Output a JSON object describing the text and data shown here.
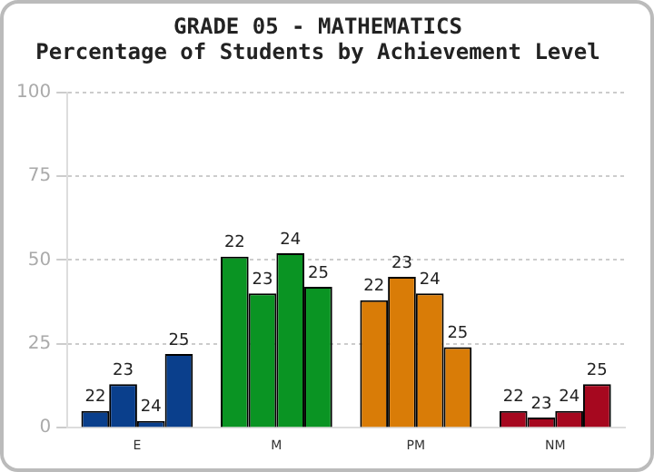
{
  "chart_data": {
    "type": "bar",
    "title": "GRADE 05 - MATHEMATICS",
    "subtitle": "Percentage of Students by Achievement Level",
    "categories": [
      "E",
      "M",
      "PM",
      "NM"
    ],
    "series": [
      {
        "name": "22",
        "colors": [
          "#0a3f8c",
          "#0a9423",
          "#d97c07",
          "#a6081f"
        ],
        "values": [
          5,
          51,
          38,
          5
        ]
      },
      {
        "name": "23",
        "colors": [
          "#0a3f8c",
          "#0a9423",
          "#d97c07",
          "#a6081f"
        ],
        "values": [
          13,
          40,
          45,
          3
        ]
      },
      {
        "name": "24",
        "colors": [
          "#0a3f8c",
          "#0a9423",
          "#d97c07",
          "#a6081f"
        ],
        "values": [
          2,
          52,
          40,
          5
        ]
      },
      {
        "name": "25",
        "colors": [
          "#0a3f8c",
          "#0a9423",
          "#d97c07",
          "#a6081f"
        ],
        "values": [
          22,
          42,
          24,
          13
        ]
      }
    ],
    "ylim": [
      0,
      100
    ],
    "yticks": [
      0,
      25,
      50,
      75,
      100
    ],
    "grid": "y",
    "legend": false
  }
}
